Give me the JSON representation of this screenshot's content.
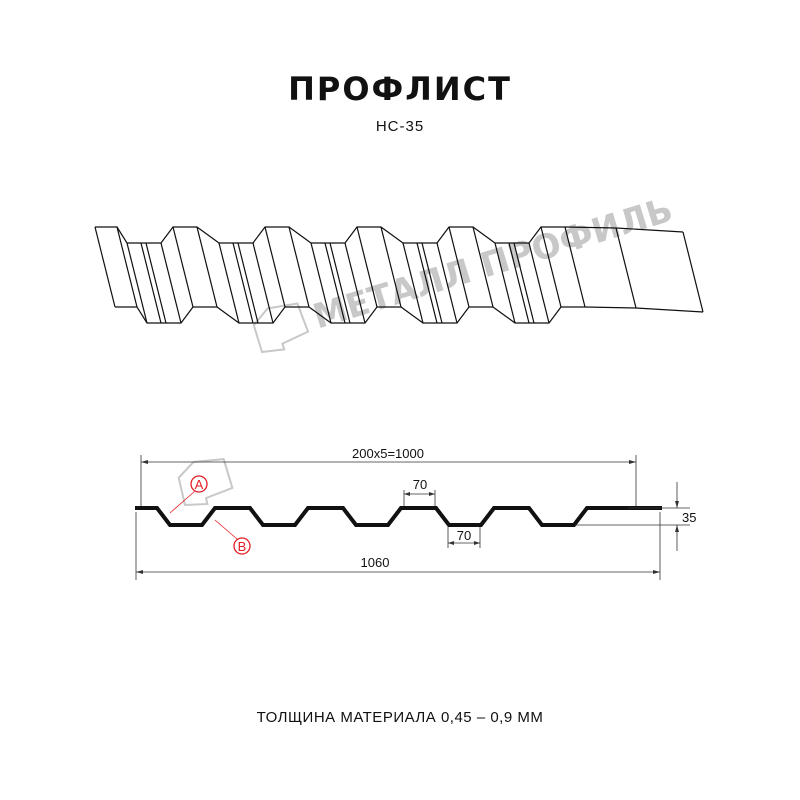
{
  "title": "ПРОФЛИСТ",
  "subtitle": "НС-35",
  "watermark": "МЕТАЛЛ ПРОФИЛЬ",
  "dimensions": {
    "pitch_total": "200x5=1000",
    "top_flat": "70",
    "bottom_flat": "70",
    "height": "35",
    "full_width": "1060"
  },
  "markers": {
    "a": "A",
    "b": "B"
  },
  "footer": "ТОЛЩИНА МАТЕРИАЛА 0,45 – 0,9 ММ",
  "colors": {
    "line": "#111111",
    "marker": "#e31e24",
    "watermark": "#c8c8c8"
  }
}
